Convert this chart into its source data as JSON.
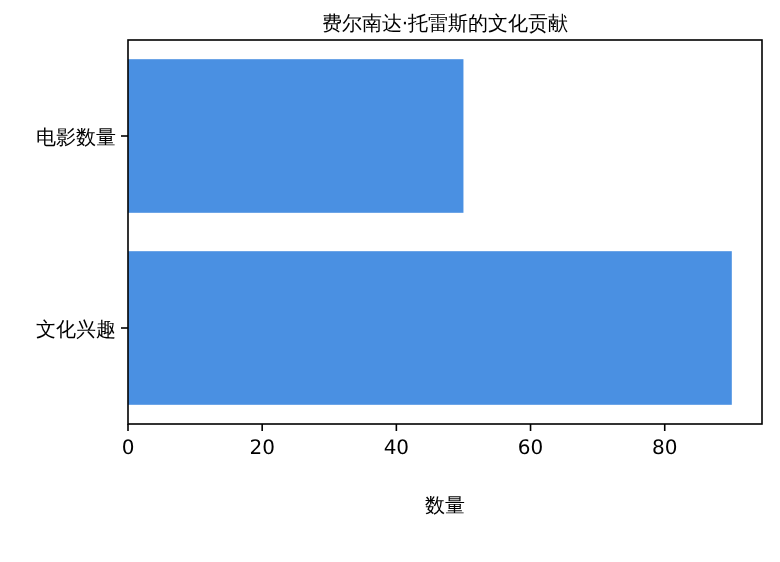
{
  "chart_data": {
    "type": "bar",
    "orientation": "horizontal",
    "title": "费尔南达·托雷斯的文化贡献",
    "xlabel": "数量",
    "categories": [
      "电影数量",
      "文化兴趣"
    ],
    "values": [
      50,
      90
    ],
    "color": "#4a90e2",
    "xlim": [
      0,
      94.5
    ],
    "xticks": [
      0,
      20,
      40,
      60,
      80
    ],
    "grid": false
  }
}
